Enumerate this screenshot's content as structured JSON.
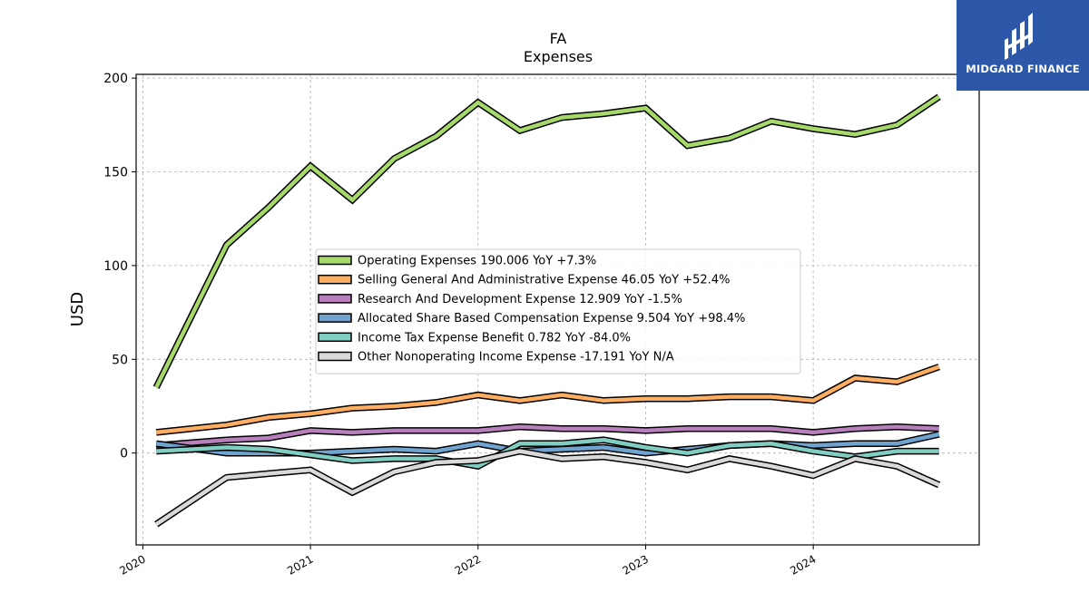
{
  "logo": {
    "text": "MIDGARD FINANCE",
    "bg_color": "#2d57a8"
  },
  "chart_data": {
    "type": "line",
    "title": "FA",
    "subtitle": "Expenses",
    "xlabel": "",
    "ylabel": "USD",
    "xlim": [
      2019.96,
      2024.99
    ],
    "ylim": [
      -49,
      202
    ],
    "yticks": [
      0,
      50,
      100,
      150,
      200
    ],
    "xticks": [
      2020,
      2021,
      2022,
      2023,
      2024
    ],
    "grid": true,
    "legend_position": "center",
    "x": [
      2020.08,
      2020.5,
      2020.75,
      2021.0,
      2021.25,
      2021.5,
      2021.75,
      2022.0,
      2022.25,
      2022.5,
      2022.75,
      2023.0,
      2023.25,
      2023.5,
      2023.75,
      2024.0,
      2024.25,
      2024.5,
      2024.75
    ],
    "series": [
      {
        "name": "Operating Expenses  190.006 YoY +7.3%",
        "color": "#a6d96a",
        "values": [
          35,
          111,
          131,
          153,
          135,
          157,
          169,
          187,
          172,
          179,
          181,
          184,
          164,
          168,
          177,
          173,
          170,
          175,
          190
        ]
      },
      {
        "name": "Selling General And Administrative Expense  46.05 YoY +52.4%",
        "color": "#fdae61",
        "values": [
          11,
          15,
          19,
          21,
          24,
          25,
          27,
          31,
          28,
          31,
          28,
          29,
          29,
          30,
          30,
          28,
          40,
          38,
          46
        ]
      },
      {
        "name": "Research And Development Expense  12.909 YoY -1.5%",
        "color": "#b87fbd",
        "values": [
          4,
          7,
          8,
          12,
          11,
          12,
          12,
          12,
          14,
          13,
          13,
          12,
          13,
          13,
          13,
          11,
          13,
          14,
          13
        ]
      },
      {
        "name": "Allocated Share Based Compensation Expense  9.504 YoY +98.4%",
        "color": "#6fa3d0",
        "values": [
          5,
          0,
          0,
          0,
          1,
          2,
          1,
          5,
          1,
          2,
          3,
          0,
          2,
          4,
          5,
          4,
          5,
          5,
          10
        ]
      },
      {
        "name": "Income Tax Expense Benefit  0.782 YoY -84.0%",
        "color": "#80cdc1",
        "values": [
          1,
          3,
          2,
          -1,
          -4,
          -3,
          -3,
          -7,
          5,
          5,
          7,
          3,
          0,
          4,
          5,
          1,
          -2,
          1,
          1
        ]
      },
      {
        "name": "Other Nonoperating Income Expense  -17.191 YoY N/A",
        "color": "#d9d9d9",
        "values": [
          -38,
          -13,
          -11,
          -9,
          -21,
          -10,
          -5,
          -4,
          1,
          -3,
          -2,
          -5,
          -9,
          -3,
          -7,
          -12,
          -3,
          -7,
          -17
        ]
      }
    ]
  }
}
